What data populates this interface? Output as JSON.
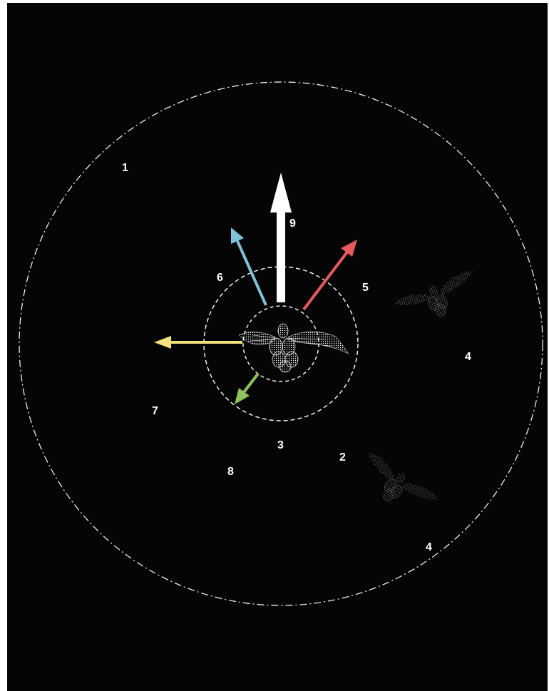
{
  "diagram": {
    "background": "#050505",
    "labels": {
      "l1": "1",
      "l2": "2",
      "l3": "3",
      "l4a": "4",
      "l4b": "4",
      "l5": "5",
      "l6": "6",
      "l7": "7",
      "l8": "8",
      "l9": "9"
    },
    "arrow_colors": {
      "up": "#ffffff",
      "upper_right": "#e8595e",
      "upper_left": "#7fc3db",
      "left": "#f2e27a",
      "lower_left": "#8fc25a"
    }
  }
}
